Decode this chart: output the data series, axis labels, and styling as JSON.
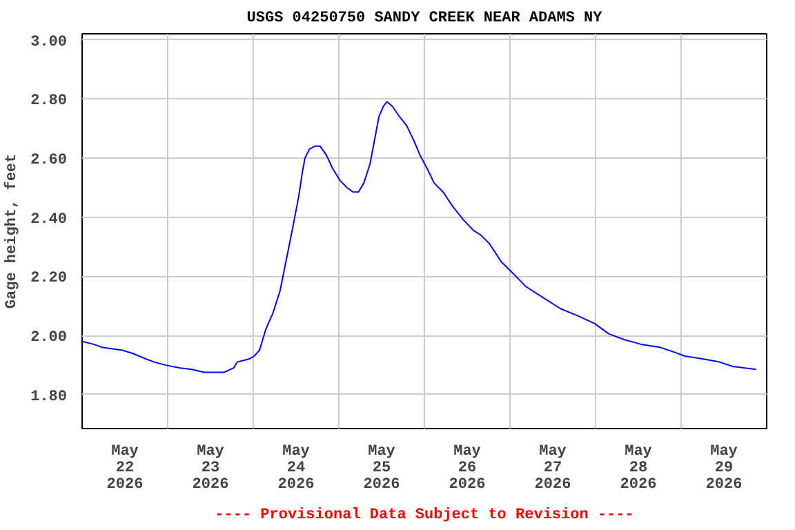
{
  "chart_data": {
    "type": "line",
    "title": "USGS 04250750 SANDY CREEK NEAR ADAMS NY",
    "ylabel": "Gage height, feet",
    "annotations": [
      "---- Provisional Data Subject to Revision ----"
    ],
    "x": [
      "2026-05-22T00:00",
      "2026-05-22T03:15",
      "2026-05-22T05:30",
      "2026-05-22T11:15",
      "2026-05-22T14:00",
      "2026-05-22T16:00",
      "2026-05-22T18:00",
      "2026-05-22T20:15",
      "2026-05-22T23:15",
      "2026-05-23T03:30",
      "2026-05-23T06:45",
      "2026-05-23T10:15",
      "2026-05-23T15:45",
      "2026-05-23T18:30",
      "2026-05-23T19:30",
      "2026-05-23T22:45",
      "2026-05-24T00:15",
      "2026-05-24T01:45",
      "2026-05-24T03:30",
      "2026-05-24T05:30",
      "2026-05-24T07:30",
      "2026-05-24T09:00",
      "2026-05-24T11:00",
      "2026-05-24T12:45",
      "2026-05-24T13:45",
      "2026-05-24T14:30",
      "2026-05-24T15:45",
      "2026-05-24T17:15",
      "2026-05-24T18:45",
      "2026-05-24T20:30",
      "2026-05-24T22:15",
      "2026-05-25T00:15",
      "2026-05-25T02:15",
      "2026-05-25T04:00",
      "2026-05-25T05:30",
      "2026-05-25T07:00",
      "2026-05-25T08:45",
      "2026-05-25T10:00",
      "2026-05-25T11:15",
      "2026-05-25T12:30",
      "2026-05-25T13:30",
      "2026-05-25T15:00",
      "2026-05-25T17:00",
      "2026-05-25T19:00",
      "2026-05-25T21:00",
      "2026-05-25T22:45",
      "2026-05-26T00:45",
      "2026-05-26T02:45",
      "2026-05-26T05:15",
      "2026-05-26T08:00",
      "2026-05-26T11:00",
      "2026-05-26T13:45",
      "2026-05-26T15:45",
      "2026-05-26T18:15",
      "2026-05-26T21:30",
      "2026-05-27T00:00",
      "2026-05-27T04:30",
      "2026-05-27T09:00",
      "2026-05-27T14:15",
      "2026-05-27T19:15",
      "2026-05-27T23:45",
      "2026-05-28T03:45",
      "2026-05-28T08:15",
      "2026-05-28T12:45",
      "2026-05-28T18:00",
      "2026-05-28T21:45",
      "2026-05-29T01:00",
      "2026-05-29T06:15",
      "2026-05-29T10:45",
      "2026-05-29T14:30",
      "2026-05-29T21:00"
    ],
    "series": [
      {
        "color": "#0000ff",
        "values": [
          1.98,
          1.97,
          1.96,
          1.95,
          1.94,
          1.93,
          1.92,
          1.91,
          1.9,
          1.89,
          1.885,
          1.875,
          1.875,
          1.89,
          1.91,
          1.92,
          1.93,
          1.95,
          2.02,
          2.075,
          2.15,
          2.24,
          2.36,
          2.47,
          2.55,
          2.6,
          2.63,
          2.64,
          2.64,
          2.61,
          2.565,
          2.525,
          2.5,
          2.485,
          2.485,
          2.515,
          2.58,
          2.66,
          2.74,
          2.775,
          2.79,
          2.775,
          2.74,
          2.71,
          2.66,
          2.61,
          2.565,
          2.515,
          2.485,
          2.435,
          2.39,
          2.355,
          2.34,
          2.31,
          2.25,
          2.22,
          2.165,
          2.13,
          2.09,
          2.065,
          2.04,
          2.005,
          1.985,
          1.97,
          1.96,
          1.945,
          1.93,
          1.92,
          1.91,
          1.895,
          1.885
        ]
      }
    ],
    "xlim": [
      "2026-05-22T00:00",
      "2026-05-30T00:00"
    ],
    "xticks": [
      {
        "value": "2026-05-22T12:00",
        "label": "May\n22\n2026"
      },
      {
        "value": "2026-05-23T12:00",
        "label": "May\n23\n2026"
      },
      {
        "value": "2026-05-24T12:00",
        "label": "May\n24\n2026"
      },
      {
        "value": "2026-05-25T12:00",
        "label": "May\n25\n2026"
      },
      {
        "value": "2026-05-26T12:00",
        "label": "May\n26\n2026"
      },
      {
        "value": "2026-05-27T12:00",
        "label": "May\n27\n2026"
      },
      {
        "value": "2026-05-28T12:00",
        "label": "May\n28\n2026"
      },
      {
        "value": "2026-05-29T12:00",
        "label": "May\n29\n2026"
      },
      {
        "value": "2026-05-23T00:00",
        "label": null
      },
      {
        "value": "2026-05-24T00:00",
        "label": null
      },
      {
        "value": "2026-05-25T00:00",
        "label": null
      },
      {
        "value": "2026-05-26T00:00",
        "label": null
      },
      {
        "value": "2026-05-27T00:00",
        "label": null
      },
      {
        "value": "2026-05-28T00:00",
        "label": null
      },
      {
        "value": "2026-05-29T00:00",
        "label": null
      }
    ],
    "ylim": [
      1.685,
      3.02
    ],
    "yticks": [
      {
        "value": 1.8,
        "label": "1.80"
      },
      {
        "value": 2.0,
        "label": "2.00"
      },
      {
        "value": 2.2,
        "label": "2.20"
      },
      {
        "value": 2.4,
        "label": "2.40"
      },
      {
        "value": 2.6,
        "label": "2.60"
      },
      {
        "value": 2.8,
        "label": "2.80"
      },
      {
        "value": 3.0,
        "label": "3.00"
      }
    ],
    "grid": true
  }
}
